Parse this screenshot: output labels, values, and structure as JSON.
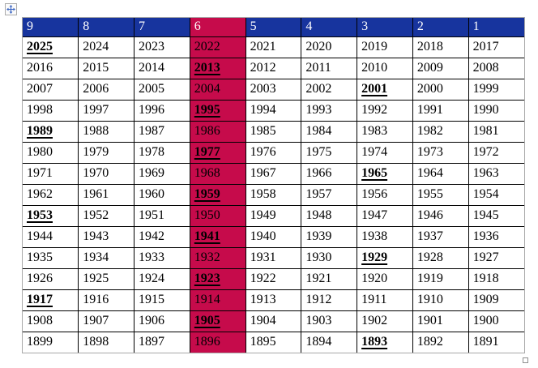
{
  "app": {
    "background_color": "#FFFFFF"
  },
  "icons": {
    "move_handle": "four-direction-move-arrow",
    "resize_handle": "table-resize-square"
  },
  "table": {
    "header": [
      "9",
      "8",
      "7",
      "6",
      "5",
      "4",
      "3",
      "2",
      "1"
    ],
    "highlighted_column_index": 3,
    "rows": [
      [
        "2025",
        "2024",
        "2023",
        "2022",
        "2021",
        "2020",
        "2019",
        "2018",
        "2017"
      ],
      [
        "2016",
        "2015",
        "2014",
        "2013",
        "2012",
        "2011",
        "2010",
        "2009",
        "2008"
      ],
      [
        "2007",
        "2006",
        "2005",
        "2004",
        "2003",
        "2002",
        "2001",
        "2000",
        "1999"
      ],
      [
        "1998",
        "1997",
        "1996",
        "1995",
        "1994",
        "1993",
        "1992",
        "1991",
        "1990"
      ],
      [
        "1989",
        "1988",
        "1987",
        "1986",
        "1985",
        "1984",
        "1983",
        "1982",
        "1981"
      ],
      [
        "1980",
        "1979",
        "1978",
        "1977",
        "1976",
        "1975",
        "1974",
        "1973",
        "1972"
      ],
      [
        "1971",
        "1970",
        "1969",
        "1968",
        "1967",
        "1966",
        "1965",
        "1964",
        "1963"
      ],
      [
        "1962",
        "1961",
        "1960",
        "1959",
        "1958",
        "1957",
        "1956",
        "1955",
        "1954"
      ],
      [
        "1953",
        "1952",
        "1951",
        "1950",
        "1949",
        "1948",
        "1947",
        "1946",
        "1945"
      ],
      [
        "1944",
        "1943",
        "1942",
        "1941",
        "1940",
        "1939",
        "1938",
        "1937",
        "1936"
      ],
      [
        "1935",
        "1934",
        "1933",
        "1932",
        "1931",
        "1930",
        "1929",
        "1928",
        "1927"
      ],
      [
        "1926",
        "1925",
        "1924",
        "1923",
        "1922",
        "1921",
        "1920",
        "1919",
        "1918"
      ],
      [
        "1917",
        "1916",
        "1915",
        "1914",
        "1913",
        "1912",
        "1911",
        "1910",
        "1909"
      ],
      [
        "1908",
        "1907",
        "1906",
        "1905",
        "1904",
        "1903",
        "1902",
        "1901",
        "1900"
      ],
      [
        "1899",
        "1898",
        "1897",
        "1896",
        "1895",
        "1894",
        "1893",
        "1892",
        "1891"
      ]
    ],
    "bold_underlined_years": [
      "2025",
      "2013",
      "2001",
      "1995",
      "1989",
      "1977",
      "1965",
      "1959",
      "1953",
      "1941",
      "1929",
      "1923",
      "1917",
      "1905",
      "1893"
    ],
    "colors": {
      "header_bg": "#17349E",
      "header_text": "#FFFFFF",
      "highlight_bg": "#C60B4B",
      "cell_bg": "#FFFFFF",
      "cell_text": "#000000",
      "inner_border": "#000000",
      "outer_border": "#A8A8A8",
      "move_handle_arrow": "#3A64C2"
    }
  }
}
